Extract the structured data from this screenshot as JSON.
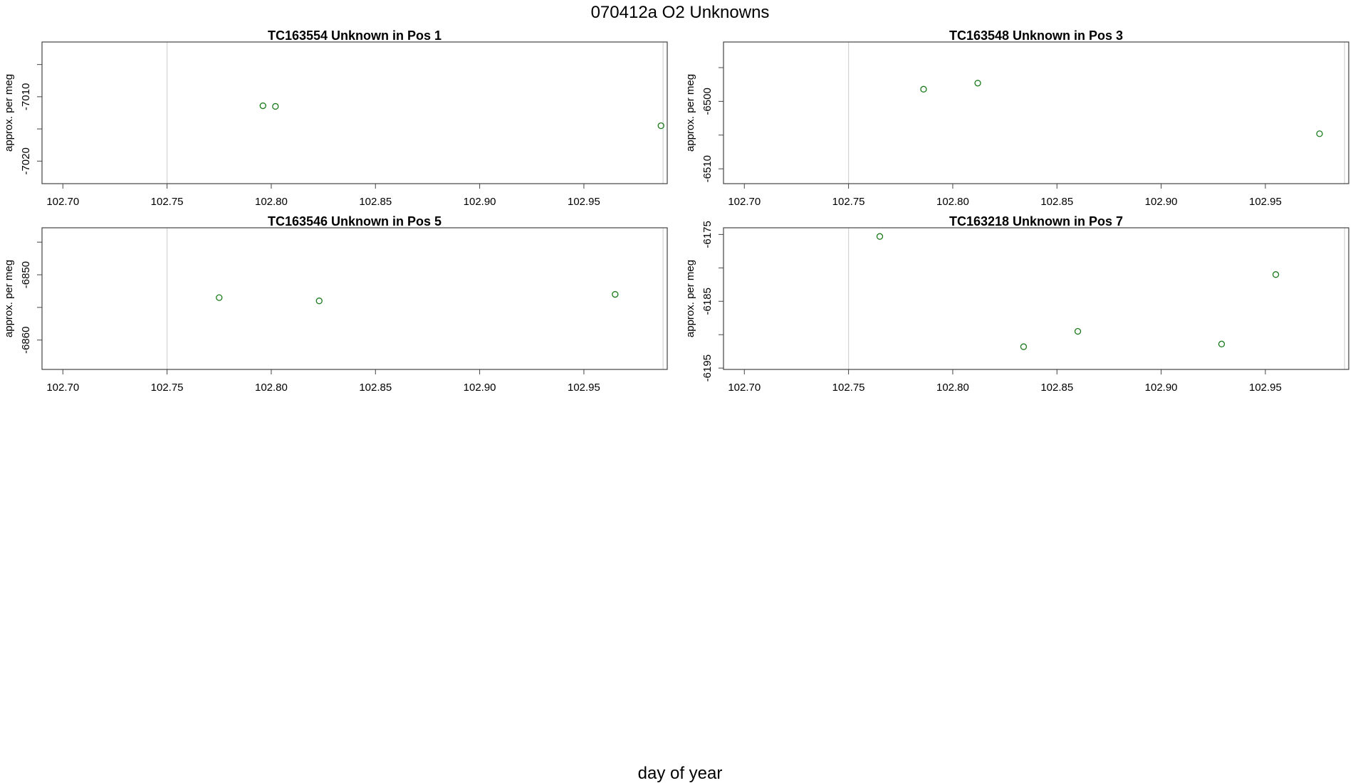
{
  "figure": {
    "title": "070412a  O2 Unknowns",
    "xlabel": "day of year"
  },
  "colors": {
    "points": "#1a7a1a",
    "vline": "#d3d3d3",
    "frame": "#444444",
    "text": "#000000"
  },
  "chart_data": [
    {
      "type": "scatter",
      "title": "TC163554    Unknown in Pos 1",
      "xlabel": "",
      "ylabel": "approx. per meg",
      "xlim": [
        102.69,
        102.99
      ],
      "ylim": [
        -7023.5,
        -7001.5
      ],
      "x_ticks": [
        "102.70",
        "102.75",
        "102.80",
        "102.85",
        "102.90",
        "102.95"
      ],
      "y_ticks": [
        "-7010",
        "-7020"
      ],
      "y_tick_values": [
        -7010,
        -7020
      ],
      "vlines": [
        102.75,
        102.988
      ],
      "x": [
        102.796,
        102.802,
        102.987
      ],
      "y": [
        -7011.4,
        -7011.5,
        -7014.5
      ],
      "grid": false,
      "legend": "none"
    },
    {
      "type": "scatter",
      "title": "TC163548    Unknown in Pos 3",
      "xlabel": "",
      "ylabel": "approx. per meg",
      "xlim": [
        102.69,
        102.99
      ],
      "ylim": [
        -6512.2,
        -6491.2
      ],
      "x_ticks": [
        "102.70",
        "102.75",
        "102.80",
        "102.85",
        "102.90",
        "102.95"
      ],
      "y_ticks": [
        "-6500",
        "-6510"
      ],
      "y_tick_values": [
        -6500,
        -6510
      ],
      "vlines": [
        102.75,
        102.988
      ],
      "x": [
        102.786,
        102.812,
        102.976
      ],
      "y": [
        -6498.2,
        -6497.3,
        -6504.8
      ],
      "grid": false,
      "legend": "none"
    },
    {
      "type": "scatter",
      "title": "TC163546    Unknown in Pos 5",
      "xlabel": "",
      "ylabel": "approx. per meg",
      "xlim": [
        102.69,
        102.99
      ],
      "ylim": [
        -6864.5,
        -6842.8
      ],
      "x_ticks": [
        "102.70",
        "102.75",
        "102.80",
        "102.85",
        "102.90",
        "102.95"
      ],
      "y_ticks": [
        "-6850",
        "-6860"
      ],
      "y_tick_values": [
        -6850,
        -6860
      ],
      "vlines": [
        102.75,
        102.988
      ],
      "x": [
        102.775,
        102.823,
        102.965
      ],
      "y": [
        -6853.5,
        -6854.0,
        -6853.0
      ],
      "grid": false,
      "legend": "none"
    },
    {
      "type": "scatter",
      "title": "TC163218    Unknown in Pos 7",
      "xlabel": "",
      "ylabel": "approx. per meg",
      "xlim": [
        102.69,
        102.99
      ],
      "ylim": [
        -6195.2,
        -6174.0
      ],
      "x_ticks": [
        "102.70",
        "102.75",
        "102.80",
        "102.85",
        "102.90",
        "102.95"
      ],
      "y_ticks": [
        "-6175",
        "-6185",
        "-6195"
      ],
      "y_tick_values": [
        -6175,
        -6185,
        -6195
      ],
      "vlines": [
        102.75,
        102.988
      ],
      "x": [
        102.765,
        102.834,
        102.86,
        102.929,
        102.955
      ],
      "y": [
        -6175.3,
        -6191.8,
        -6189.5,
        -6191.4,
        -6181.0
      ],
      "grid": false,
      "legend": "none"
    }
  ]
}
